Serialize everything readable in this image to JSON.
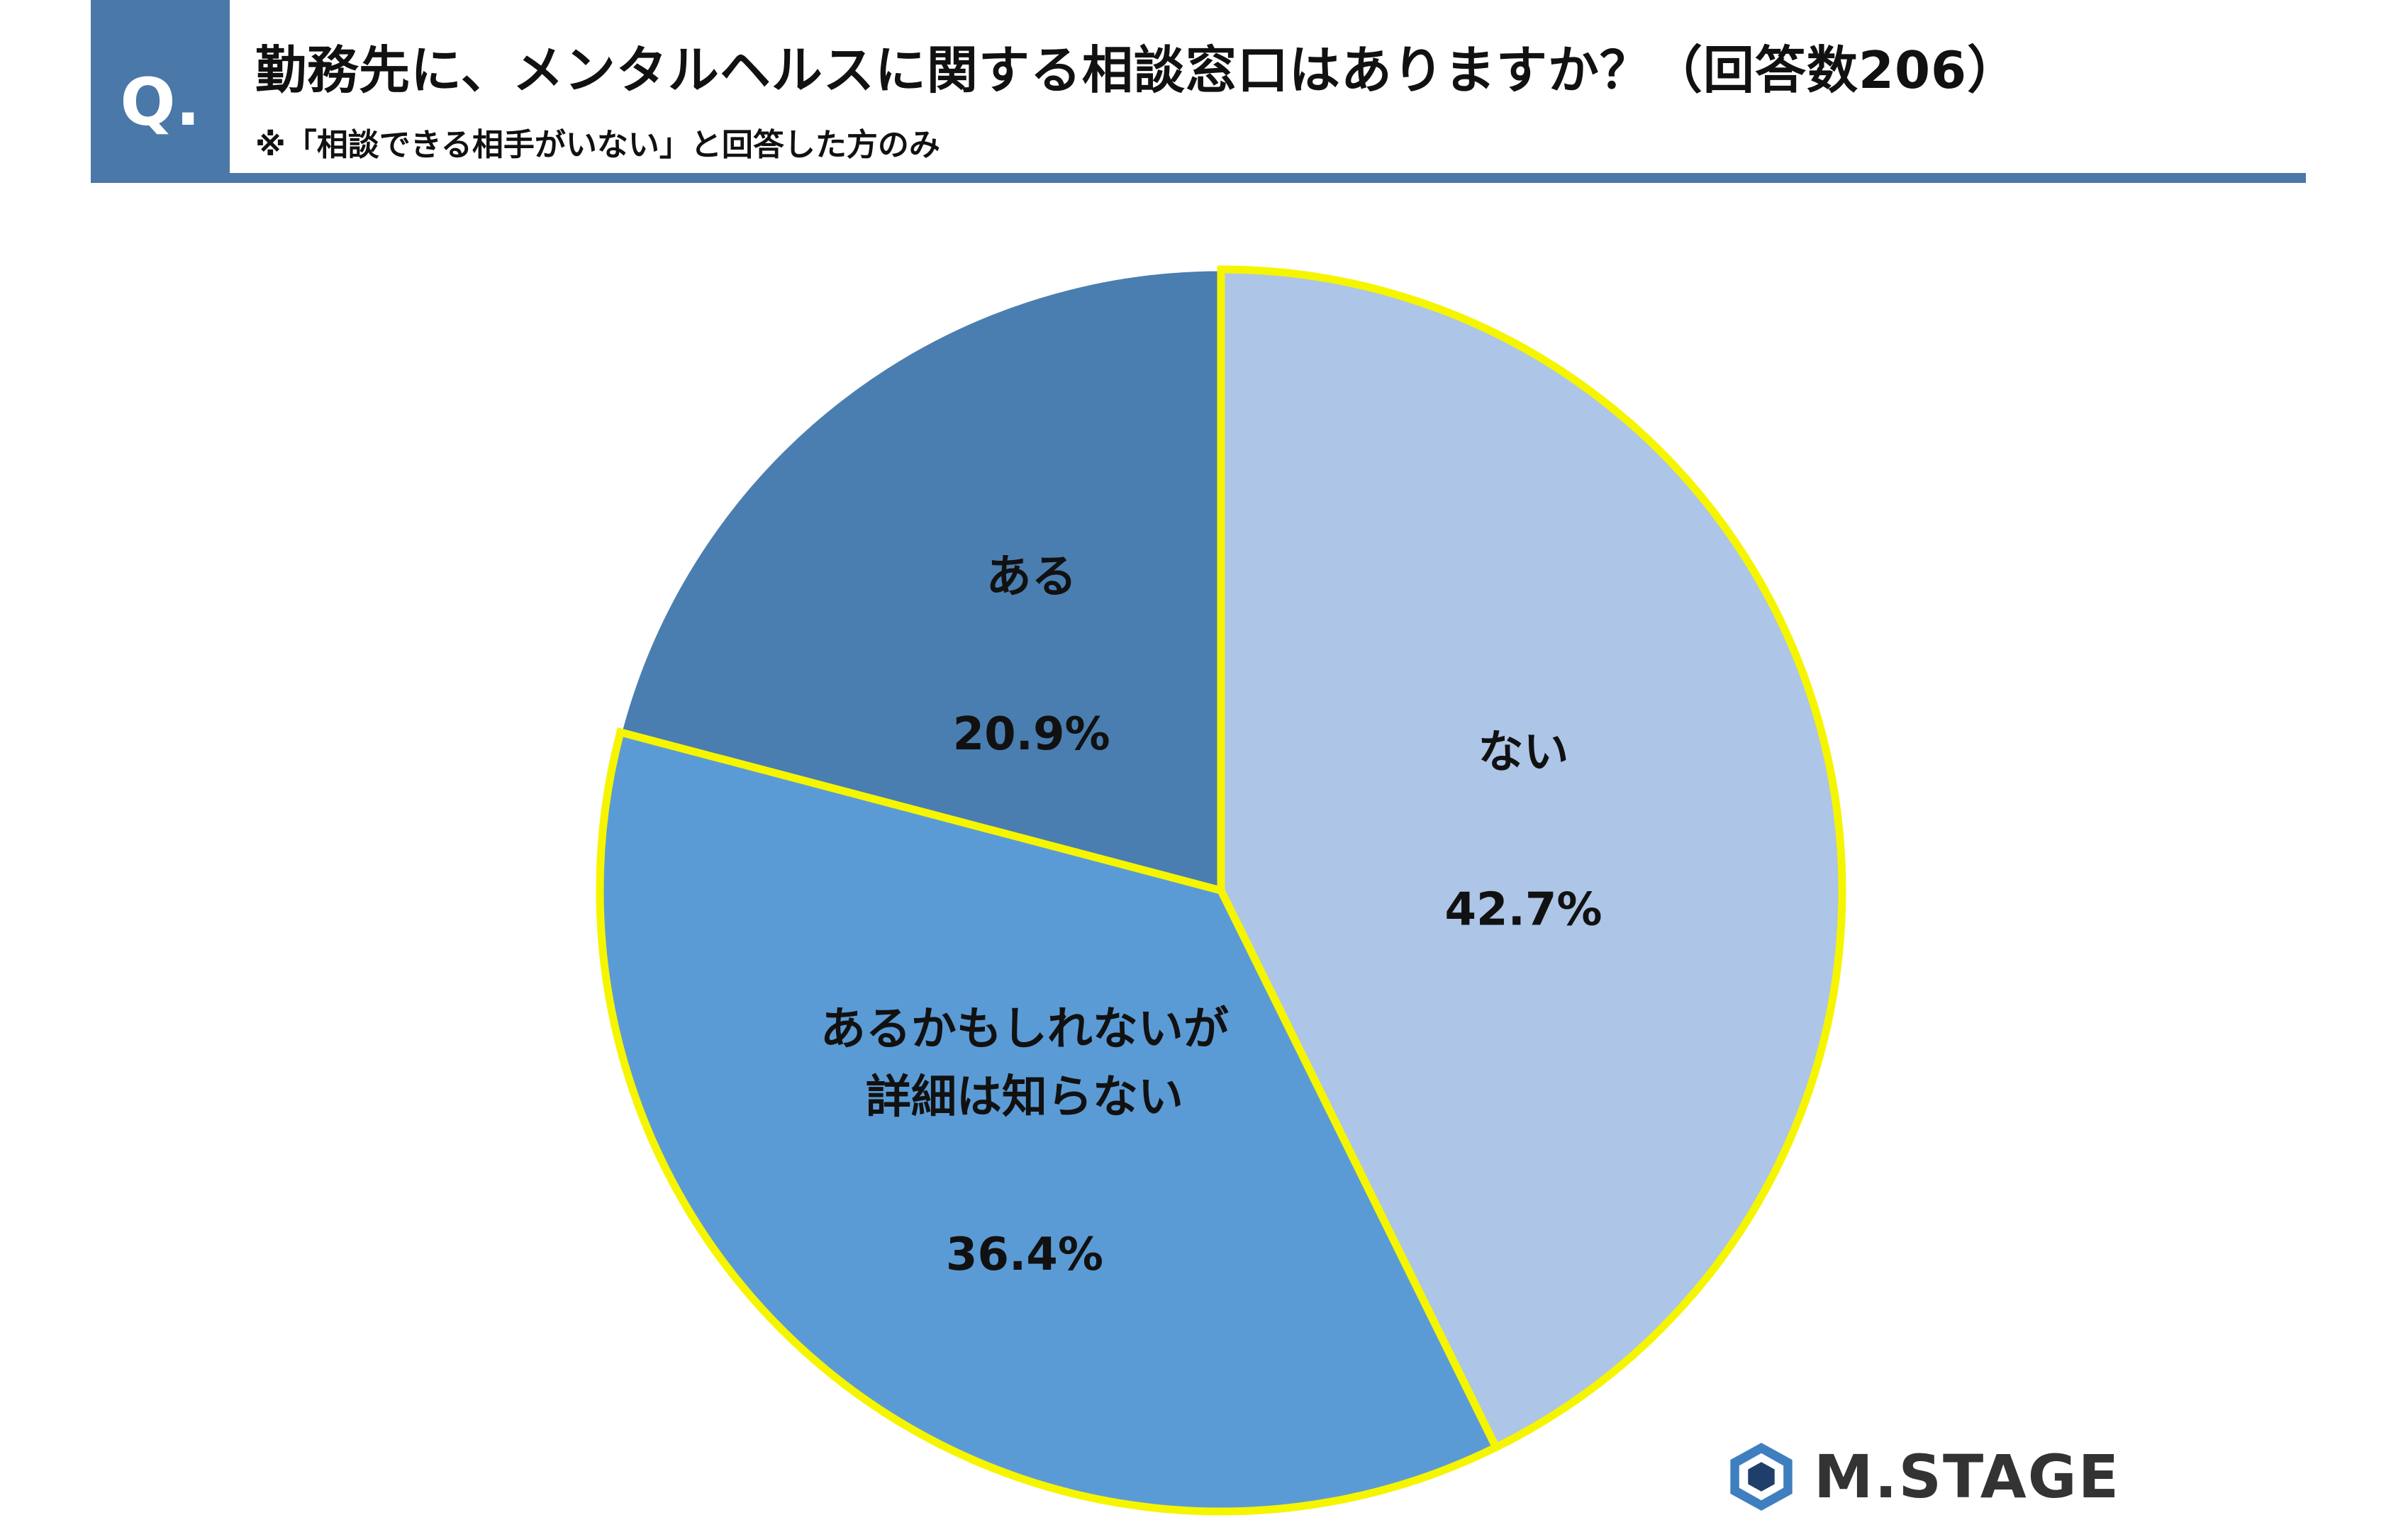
{
  "header": {
    "badge": "Q.",
    "title": "勤務先に、メンタルヘルスに関する相談窓口はありますか？（回答数206）",
    "note": "※「相談できる相手がいない」と回答した方のみ"
  },
  "logo": {
    "text": "M.STAGE"
  },
  "colors": {
    "accent": "#4a78a8",
    "highlight_border": "#f5f500"
  },
  "chart_data": {
    "type": "pie",
    "title": "勤務先に、メンタルヘルスに関する相談窓口はありますか？（回答数206）",
    "slices": [
      {
        "label": "ない",
        "value": 42.7,
        "display": "42.7%",
        "color": "#adc5e6",
        "highlighted": true
      },
      {
        "label": "あるかもしれないが\n詳細は知らない",
        "value": 36.4,
        "display": "36.4%",
        "color": "#5b9bd5",
        "highlighted": true
      },
      {
        "label": "ある",
        "value": 20.9,
        "display": "20.9%",
        "color": "#4a7eb0",
        "highlighted": false
      }
    ]
  }
}
